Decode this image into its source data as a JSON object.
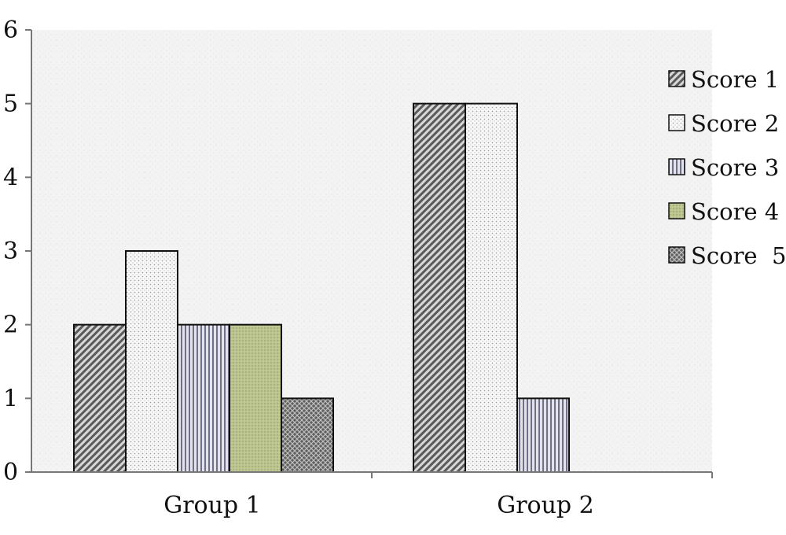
{
  "chart_data": {
    "type": "bar",
    "categories": [
      "Group 1",
      "Group 2"
    ],
    "series": [
      {
        "name": "Score 1",
        "values": [
          2,
          5
        ],
        "color": "#8f8f8f",
        "pattern": "diag-dense"
      },
      {
        "name": "Score 2",
        "values": [
          3,
          5
        ],
        "color": "#f2f2f2",
        "pattern": "dots"
      },
      {
        "name": "Score 3",
        "values": [
          2,
          1
        ],
        "color": "#b9b9c9",
        "pattern": "vlines"
      },
      {
        "name": "Score 4",
        "values": [
          2,
          null
        ],
        "color": "#b7bf86",
        "pattern": "dots-olive"
      },
      {
        "name": "Score  5",
        "values": [
          1,
          null
        ],
        "color": "#7c7c7c",
        "pattern": "cross"
      }
    ],
    "yticks": [
      "0",
      "1",
      "2",
      "3",
      "4",
      "5",
      "6"
    ],
    "ylim": [
      0,
      6
    ],
    "grid": false,
    "title": "",
    "xlabel": "",
    "ylabel": "",
    "legend_position": "right"
  }
}
